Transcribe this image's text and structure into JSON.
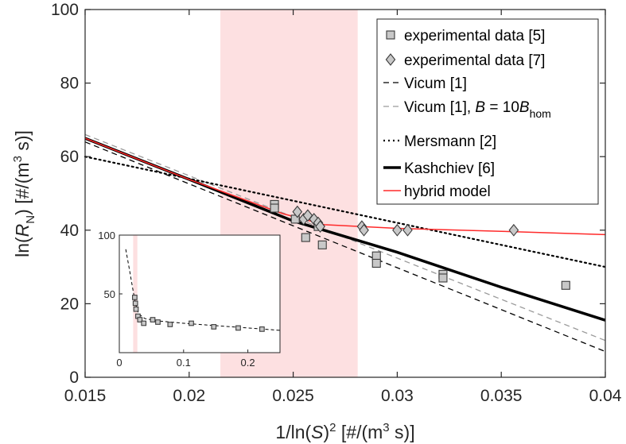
{
  "chart_data": {
    "type": "scatter",
    "xlabel": "1/ln(S)² [#/(m³ s)]",
    "ylabel": "ln(R_N) [#/(m³ s)]",
    "xlim": [
      0.015,
      0.04
    ],
    "ylim": [
      0,
      100
    ],
    "xticks": [
      0.015,
      0.02,
      0.025,
      0.03,
      0.035,
      0.04
    ],
    "xtick_labels": [
      "0.015",
      "0.02",
      "0.025",
      "0.03",
      "0.035",
      "0.04"
    ],
    "yticks": [
      0,
      20,
      40,
      60,
      80,
      100
    ],
    "ytick_labels": [
      "0",
      "20",
      "40",
      "60",
      "80",
      "100"
    ],
    "shaded_region": {
      "x": [
        0.0215,
        0.0281
      ],
      "color": "#fde0e1"
    },
    "legend_position": "top-right",
    "series": [
      {
        "name": "experimental data [5]",
        "kind": "marker",
        "marker": "square",
        "color": "#c8c8c8",
        "x": [
          0.0241,
          0.0241,
          0.0251,
          0.0256,
          0.0262,
          0.0264,
          0.029,
          0.029,
          0.0322,
          0.0322,
          0.0381
        ],
        "y": [
          47,
          46,
          43,
          38,
          41,
          36,
          33,
          31,
          28,
          27,
          25
        ]
      },
      {
        "name": "experimental data  [7]",
        "kind": "marker",
        "marker": "diamond",
        "color": "#c8c8c8",
        "x": [
          0.0252,
          0.0255,
          0.0257,
          0.026,
          0.0262,
          0.0263,
          0.0283,
          0.0284,
          0.03,
          0.0305,
          0.0356
        ],
        "y": [
          45,
          43,
          44,
          43,
          42,
          41,
          41,
          40,
          40,
          40,
          40
        ]
      },
      {
        "name": "Vicum [1]",
        "kind": "line",
        "style": "dashed",
        "color": "#000000",
        "width": 1.3,
        "x": [
          0.015,
          0.04
        ],
        "y": [
          64,
          7
        ]
      },
      {
        "name": "Vicum [1], B = 10B_hom",
        "legend_parts": [
          "Vicum [1], ",
          "B",
          " = 10",
          "B",
          "hom"
        ],
        "kind": "line",
        "style": "dashed",
        "color": "#9a9a9a",
        "width": 1.3,
        "x": [
          0.015,
          0.04
        ],
        "y": [
          66,
          10
        ]
      },
      {
        "name": "Mersmann [2]",
        "kind": "line",
        "style": "dotted",
        "color": "#000000",
        "width": 2.2,
        "x": [
          0.015,
          0.04
        ],
        "y": [
          60,
          30
        ]
      },
      {
        "name": "Kashchiev [6]",
        "kind": "line",
        "style": "solid",
        "color": "#000000",
        "width": 3.5,
        "x": [
          0.015,
          0.02,
          0.025,
          0.03,
          0.035,
          0.04
        ],
        "y": [
          65,
          53.8,
          42.5,
          34,
          24.5,
          15.5
        ]
      },
      {
        "name": "hybrid model",
        "kind": "line",
        "style": "solid",
        "color": "#ff2a2a",
        "width": 1.5,
        "x": [
          0.015,
          0.02,
          0.0245,
          0.0265,
          0.03,
          0.035,
          0.04
        ],
        "y": [
          65,
          53.8,
          44.5,
          41.5,
          40.5,
          39.7,
          38.8
        ]
      }
    ],
    "inset": {
      "xlim": [
        0,
        0.25
      ],
      "ylim": [
        0,
        100
      ],
      "xticks": [
        0,
        0.1,
        0.2
      ],
      "xtick_labels": [
        "0",
        "0.1",
        "0.2"
      ],
      "yticks": [
        50,
        100
      ],
      "ytick_labels": [
        "50",
        "100"
      ],
      "shaded_region": {
        "x": [
          0.0215,
          0.0281
        ]
      },
      "squares": {
        "x": [
          0.024,
          0.025,
          0.026,
          0.029,
          0.032,
          0.038,
          0.052,
          0.06,
          0.079,
          0.112,
          0.147,
          0.185,
          0.222
        ],
        "y": [
          47,
          42,
          37,
          31,
          28,
          25,
          28,
          26,
          24,
          25,
          22,
          21,
          20
        ]
      },
      "line": {
        "x": [
          0.01,
          0.016,
          0.021,
          0.025,
          0.03,
          0.04,
          0.06,
          0.1,
          0.15,
          0.2,
          0.25
        ],
        "y": [
          88,
          70,
          54,
          42,
          33,
          29,
          27,
          25,
          23,
          21,
          19
        ]
      }
    }
  }
}
